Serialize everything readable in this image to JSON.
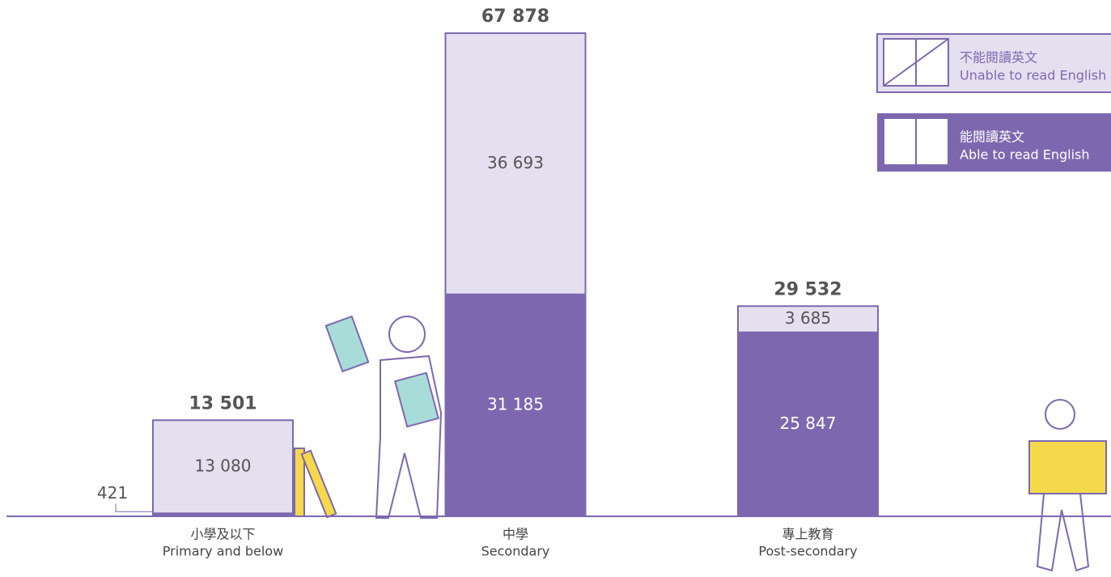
{
  "chart_data": {
    "type": "bar",
    "stacked": true,
    "categories": [
      "Primary and below",
      "Secondary",
      "Post-secondary"
    ],
    "categories_zh": [
      "小學及以下",
      "中學",
      "專上教育"
    ],
    "series": [
      {
        "name": "Able to read English",
        "name_zh": "能閱讀英文",
        "color": "#7d68b0",
        "values": [
          421,
          31185,
          25847
        ],
        "value_labels": [
          "421",
          "31 185",
          "25 847"
        ]
      },
      {
        "name": "Unable to read English",
        "name_zh": "不能閱讀英文",
        "color": "#e5e0f0",
        "values": [
          13080,
          36693,
          3685
        ],
        "value_labels": [
          "13 080",
          "36 693",
          "3 685"
        ]
      }
    ],
    "totals": [
      13501,
      67878,
      29532
    ],
    "total_labels": [
      "13 501",
      "67 878",
      "29 532"
    ]
  }
}
